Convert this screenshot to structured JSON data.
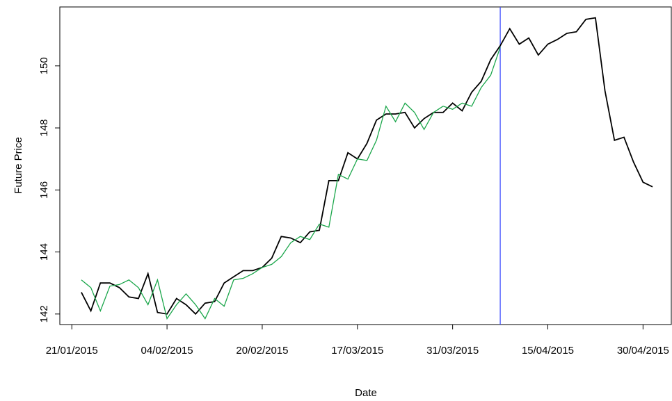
{
  "chart_data": {
    "type": "line",
    "x_label": "Date",
    "y_label": "Future Price",
    "x": [
      1,
      2,
      3,
      4,
      5,
      6,
      7,
      8,
      9,
      10,
      11,
      12,
      13,
      14,
      15,
      16,
      17,
      18,
      19,
      20,
      21,
      22,
      23,
      24,
      25,
      26,
      27,
      28,
      29,
      30,
      31,
      32,
      33,
      34,
      35,
      36,
      37,
      38,
      39,
      40,
      41,
      42,
      43,
      44,
      45,
      46,
      47,
      48,
      49,
      50,
      51,
      52,
      53,
      54,
      55,
      56,
      57,
      58,
      59,
      60,
      61
    ],
    "series": [
      {
        "color": "#000000",
        "values": [
          142.7,
          142.1,
          143.0,
          143.0,
          142.85,
          142.55,
          142.5,
          143.3,
          142.05,
          142.0,
          142.5,
          142.3,
          142.0,
          142.35,
          142.4,
          143.0,
          143.2,
          143.4,
          143.4,
          143.5,
          143.8,
          144.5,
          144.45,
          144.3,
          144.65,
          144.7,
          146.3,
          146.3,
          147.2,
          147.0,
          147.5,
          148.25,
          148.45,
          148.45,
          148.5,
          148.0,
          148.3,
          148.5,
          148.5,
          148.8,
          148.55,
          149.15,
          149.5,
          150.2,
          150.65,
          151.2,
          150.7,
          150.9,
          150.35,
          150.7,
          150.85,
          151.05,
          151.1,
          151.5,
          151.55,
          149.2,
          147.6,
          147.7,
          146.9,
          146.25,
          146.1
        ]
      },
      {
        "color": "#1aa64a",
        "values": [
          143.1,
          142.85,
          142.1,
          142.9,
          142.95,
          143.1,
          142.85,
          142.3,
          143.1,
          141.85,
          142.3,
          142.65,
          142.3,
          141.85,
          142.5,
          142.25,
          143.1,
          143.15,
          143.3,
          143.5,
          143.6,
          143.85,
          144.3,
          144.5,
          144.4,
          144.9,
          144.8,
          146.5,
          146.35,
          147.0,
          146.95,
          147.6,
          148.7,
          148.2,
          148.8,
          148.5,
          147.95,
          148.5,
          148.7,
          148.6,
          148.8,
          148.7,
          149.3,
          149.7,
          150.6,
          null,
          null,
          null,
          null,
          null,
          null,
          null,
          null,
          null,
          null,
          null,
          null,
          null,
          null,
          null,
          null
        ]
      }
    ],
    "vline": {
      "x": 45,
      "color": "#3344ff"
    },
    "xlim": [
      -1.26,
      62.97
    ],
    "ylim": [
      141.66,
      151.9
    ],
    "xticks": [
      {
        "value": 0,
        "label": "21/01/2015"
      },
      {
        "value": 10,
        "label": "04/02/2015"
      },
      {
        "value": 20,
        "label": "20/02/2015"
      },
      {
        "value": 30,
        "label": "17/03/2015"
      },
      {
        "value": 40,
        "label": "31/03/2015"
      },
      {
        "value": 50,
        "label": "15/04/2015"
      },
      {
        "value": 60,
        "label": "30/04/2015"
      }
    ],
    "yticks": [
      142,
      144,
      146,
      148,
      150
    ],
    "grid": false
  }
}
